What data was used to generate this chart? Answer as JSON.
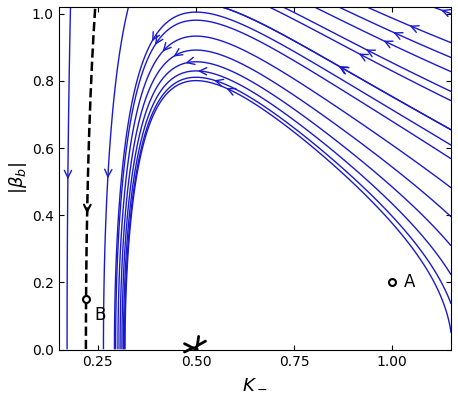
{
  "xlim": [
    0.15,
    1.15
  ],
  "ylim": [
    0.0,
    1.02
  ],
  "xlabel": "K_{-}",
  "ylabel": "|\\beta_b|",
  "xticks": [
    0.25,
    0.5,
    0.75,
    1.0
  ],
  "yticks": [
    0.0,
    0.2,
    0.4,
    0.6,
    0.8,
    1.0
  ],
  "point_A": [
    1.0,
    0.2
  ],
  "point_B": [
    0.22,
    0.15
  ],
  "flow_color": "#1a1acc",
  "figsize": [
    4.58,
    3.99
  ],
  "dpi": 100,
  "c_coupling": 2.0,
  "gamma": 2.0
}
